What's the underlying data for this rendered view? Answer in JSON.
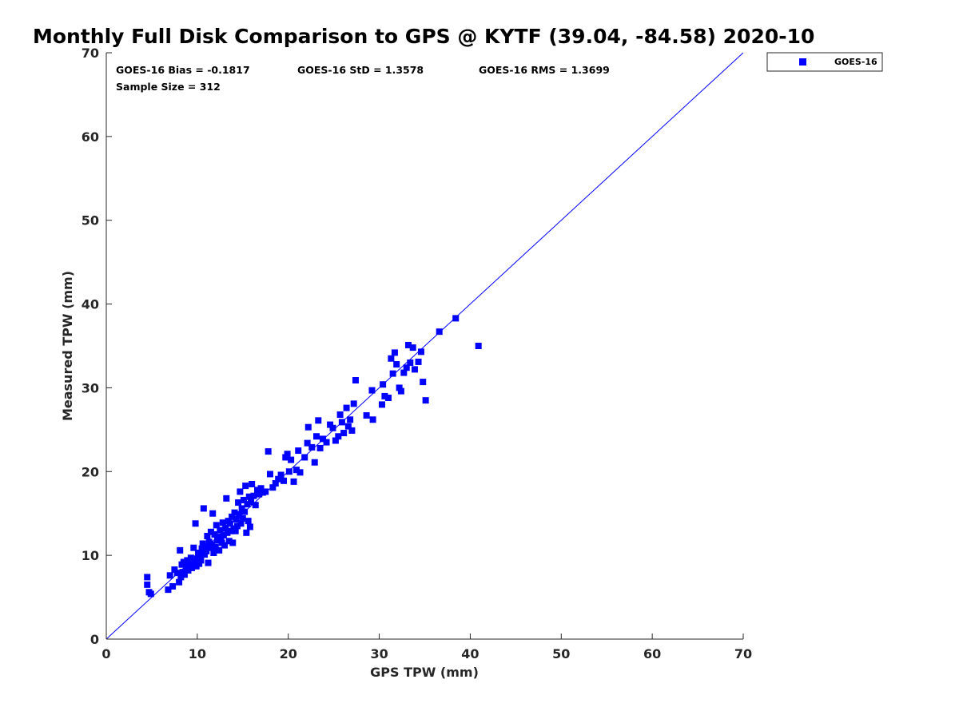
{
  "chart_data": {
    "type": "scatter",
    "title": "Monthly Full Disk Comparison to GPS @ KYTF (39.04, -84.58) 2020-10",
    "xlabel": "GPS TPW (mm)",
    "ylabel": "Measured TPW (mm)",
    "xlim": [
      0,
      70
    ],
    "ylim": [
      0,
      70
    ],
    "xticks": [
      "0",
      "10",
      "20",
      "30",
      "40",
      "50",
      "60",
      "70"
    ],
    "yticks": [
      "0",
      "10",
      "20",
      "30",
      "40",
      "50",
      "60",
      "70"
    ],
    "grid": false,
    "legend_position": "outside-top-right",
    "reference_line": "1:1",
    "stats": {
      "bias": "GOES-16 Bias = -0.1817",
      "std": "GOES-16 StD = 1.3578",
      "rms": "GOES-16 RMS = 1.3699",
      "sample_size": "Sample Size = 312"
    },
    "series": [
      {
        "name": "GOES-16",
        "color": "#0000ff",
        "marker": "square",
        "points": [
          [
            4.5,
            7.4
          ],
          [
            4.5,
            6.5
          ],
          [
            4.7,
            5.6
          ],
          [
            4.9,
            5.4
          ],
          [
            6.8,
            5.9
          ],
          [
            7.0,
            7.6
          ],
          [
            7.3,
            6.3
          ],
          [
            7.5,
            8.3
          ],
          [
            7.8,
            7.9
          ],
          [
            8.0,
            6.8
          ],
          [
            8.1,
            10.6
          ],
          [
            8.2,
            7.4
          ],
          [
            8.3,
            8.9
          ],
          [
            8.4,
            8.0
          ],
          [
            8.5,
            9.2
          ],
          [
            8.6,
            7.7
          ],
          [
            8.8,
            8.6
          ],
          [
            8.9,
            9.4
          ],
          [
            9.0,
            8.2
          ],
          [
            9.2,
            8.9
          ],
          [
            9.3,
            9.7
          ],
          [
            9.4,
            8.5
          ],
          [
            9.6,
            10.9
          ],
          [
            9.7,
            9.1
          ],
          [
            9.8,
            13.8
          ],
          [
            9.9,
            8.7
          ],
          [
            10.0,
            9.6
          ],
          [
            10.1,
            10.3
          ],
          [
            10.2,
            9.0
          ],
          [
            10.3,
            10.0
          ],
          [
            10.4,
            9.4
          ],
          [
            10.5,
            10.8
          ],
          [
            10.6,
            11.4
          ],
          [
            10.7,
            15.6
          ],
          [
            10.8,
            10.1
          ],
          [
            10.9,
            11.0
          ],
          [
            11.0,
            10.5
          ],
          [
            11.1,
            12.3
          ],
          [
            11.2,
            9.1
          ],
          [
            11.3,
            11.6
          ],
          [
            11.4,
            10.9
          ],
          [
            11.5,
            12.8
          ],
          [
            11.6,
            11.3
          ],
          [
            11.7,
            15.0
          ],
          [
            11.8,
            10.3
          ],
          [
            11.9,
            12.5
          ],
          [
            12.0,
            11.0
          ],
          [
            12.1,
            13.6
          ],
          [
            12.2,
            11.8
          ],
          [
            12.3,
            12.2
          ],
          [
            12.4,
            10.6
          ],
          [
            12.5,
            13.0
          ],
          [
            12.6,
            12.0
          ],
          [
            12.7,
            11.5
          ],
          [
            12.8,
            13.9
          ],
          [
            12.9,
            12.4
          ],
          [
            13.0,
            11.2
          ],
          [
            13.1,
            13.3
          ],
          [
            13.2,
            16.8
          ],
          [
            13.3,
            12.7
          ],
          [
            13.4,
            14.1
          ],
          [
            13.5,
            11.7
          ],
          [
            13.6,
            13.8
          ],
          [
            13.7,
            12.9
          ],
          [
            13.8,
            14.6
          ],
          [
            13.9,
            11.5
          ],
          [
            14.0,
            13.2
          ],
          [
            14.1,
            15.1
          ],
          [
            14.2,
            12.9
          ],
          [
            14.3,
            14.3
          ],
          [
            14.4,
            13.5
          ],
          [
            14.5,
            16.3
          ],
          [
            14.6,
            14.9
          ],
          [
            14.7,
            17.6
          ],
          [
            14.8,
            13.8
          ],
          [
            14.9,
            15.6
          ],
          [
            15.0,
            14.4
          ],
          [
            15.1,
            16.6
          ],
          [
            15.2,
            15.2
          ],
          [
            15.3,
            18.3
          ],
          [
            15.4,
            12.7
          ],
          [
            15.5,
            16.1
          ],
          [
            15.6,
            14.1
          ],
          [
            15.7,
            17.0
          ],
          [
            15.8,
            13.4
          ],
          [
            15.9,
            16.4
          ],
          [
            16.0,
            18.5
          ],
          [
            16.2,
            17.1
          ],
          [
            16.4,
            16.0
          ],
          [
            16.6,
            17.8
          ],
          [
            16.8,
            17.3
          ],
          [
            17.0,
            18.0
          ],
          [
            17.2,
            17.5
          ],
          [
            17.5,
            17.6
          ],
          [
            17.8,
            22.4
          ],
          [
            18.0,
            19.7
          ],
          [
            18.3,
            18.1
          ],
          [
            18.6,
            18.6
          ],
          [
            18.9,
            19.1
          ],
          [
            19.2,
            19.6
          ],
          [
            19.5,
            18.9
          ],
          [
            19.7,
            21.7
          ],
          [
            19.9,
            22.1
          ],
          [
            20.1,
            20.0
          ],
          [
            20.3,
            21.4
          ],
          [
            20.6,
            18.8
          ],
          [
            20.9,
            20.2
          ],
          [
            21.1,
            22.5
          ],
          [
            21.3,
            19.9
          ],
          [
            21.8,
            21.7
          ],
          [
            22.1,
            23.4
          ],
          [
            22.2,
            25.3
          ],
          [
            22.6,
            22.9
          ],
          [
            22.9,
            21.1
          ],
          [
            23.1,
            24.2
          ],
          [
            23.3,
            26.1
          ],
          [
            23.5,
            22.8
          ],
          [
            23.8,
            23.9
          ],
          [
            24.2,
            23.5
          ],
          [
            24.6,
            25.6
          ],
          [
            24.9,
            25.2
          ],
          [
            25.2,
            23.7
          ],
          [
            25.5,
            24.2
          ],
          [
            25.7,
            26.8
          ],
          [
            25.9,
            25.9
          ],
          [
            26.1,
            24.6
          ],
          [
            26.4,
            27.6
          ],
          [
            26.6,
            25.4
          ],
          [
            26.8,
            26.2
          ],
          [
            27.0,
            24.9
          ],
          [
            27.2,
            28.1
          ],
          [
            27.4,
            30.9
          ],
          [
            28.6,
            26.7
          ],
          [
            29.2,
            29.7
          ],
          [
            29.3,
            26.2
          ],
          [
            30.3,
            28.0
          ],
          [
            30.4,
            30.4
          ],
          [
            30.6,
            29.0
          ],
          [
            31.0,
            28.8
          ],
          [
            31.3,
            33.5
          ],
          [
            31.5,
            31.7
          ],
          [
            31.7,
            34.2
          ],
          [
            31.9,
            32.8
          ],
          [
            32.2,
            30.0
          ],
          [
            32.4,
            29.6
          ],
          [
            32.7,
            31.8
          ],
          [
            33.0,
            32.4
          ],
          [
            33.2,
            35.1
          ],
          [
            33.4,
            33.0
          ],
          [
            33.7,
            34.8
          ],
          [
            33.9,
            32.2
          ],
          [
            34.3,
            33.1
          ],
          [
            34.6,
            34.3
          ],
          [
            34.8,
            30.7
          ],
          [
            35.1,
            28.5
          ],
          [
            36.6,
            36.7
          ],
          [
            38.4,
            38.3
          ],
          [
            40.9,
            35.0
          ]
        ]
      }
    ]
  }
}
